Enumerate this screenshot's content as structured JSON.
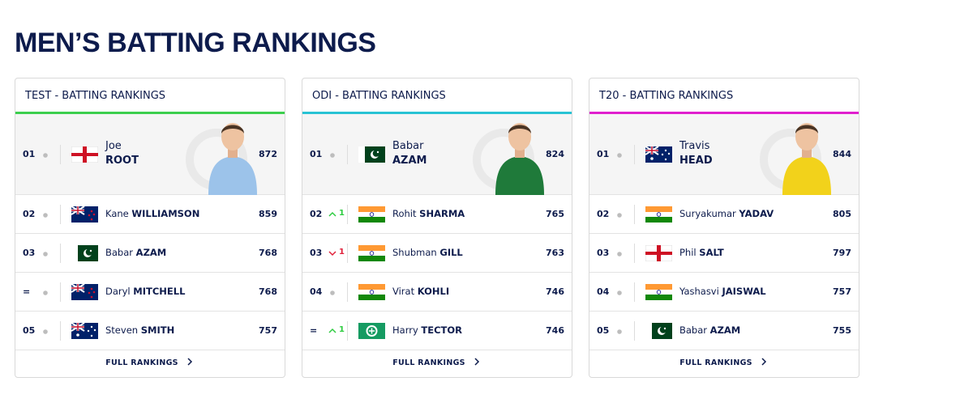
{
  "header": {
    "title": "MEN’S BATTING RANKINGS"
  },
  "cards": [
    {
      "title": "TEST - BATTING RANKINGS",
      "color": "#3ccf4e",
      "link": "FULL RANKINGS",
      "rows": [
        {
          "rank": "01",
          "movement": "none",
          "flag": "eng",
          "first": "Joe",
          "last": "ROOT",
          "rating": 872,
          "jersey": "#9cc3ea"
        },
        {
          "rank": "02",
          "movement": "none",
          "flag": "nzl",
          "first": "Kane",
          "last": "WILLIAMSON",
          "rating": 859
        },
        {
          "rank": "03",
          "movement": "none",
          "flag": "pak",
          "first": "Babar",
          "last": "AZAM",
          "rating": 768
        },
        {
          "rank": "=",
          "movement": "none",
          "flag": "nzl",
          "first": "Daryl",
          "last": "MITCHELL",
          "rating": 768
        },
        {
          "rank": "05",
          "movement": "none",
          "flag": "aus",
          "first": "Steven",
          "last": "SMITH",
          "rating": 757
        }
      ]
    },
    {
      "title": "ODI - BATTING RANKINGS",
      "color": "#28c3d4",
      "link": "FULL RANKINGS",
      "rows": [
        {
          "rank": "01",
          "movement": "none",
          "flag": "pak",
          "first": "Babar",
          "last": "AZAM",
          "rating": 824,
          "jersey": "#1f7a3a"
        },
        {
          "rank": "02",
          "movement": "up",
          "change": "1",
          "flag": "ind",
          "first": "Rohit",
          "last": "SHARMA",
          "rating": 765
        },
        {
          "rank": "03",
          "movement": "down",
          "change": "1",
          "flag": "ind",
          "first": "Shubman",
          "last": "GILL",
          "rating": 763
        },
        {
          "rank": "04",
          "movement": "none",
          "flag": "ind",
          "first": "Virat",
          "last": "KOHLI",
          "rating": 746
        },
        {
          "rank": "=",
          "movement": "up",
          "change": "1",
          "flag": "ire",
          "first": "Harry",
          "last": "TECTOR",
          "rating": 746
        }
      ]
    },
    {
      "title": "T20 - BATTING RANKINGS",
      "color": "#e01fce",
      "link": "FULL RANKINGS",
      "rows": [
        {
          "rank": "01",
          "movement": "none",
          "flag": "aus",
          "first": "Travis",
          "last": "HEAD",
          "rating": 844,
          "jersey": "#f2d21b"
        },
        {
          "rank": "02",
          "movement": "none",
          "flag": "ind",
          "first": "Suryakumar",
          "last": "YADAV",
          "rating": 805
        },
        {
          "rank": "03",
          "movement": "none",
          "flag": "eng",
          "first": "Phil",
          "last": "SALT",
          "rating": 797
        },
        {
          "rank": "04",
          "movement": "none",
          "flag": "ind",
          "first": "Yashasvi",
          "last": "JAISWAL",
          "rating": 757
        },
        {
          "rank": "05",
          "movement": "none",
          "flag": "pak",
          "first": "Babar",
          "last": "AZAM",
          "rating": 755
        }
      ]
    }
  ]
}
